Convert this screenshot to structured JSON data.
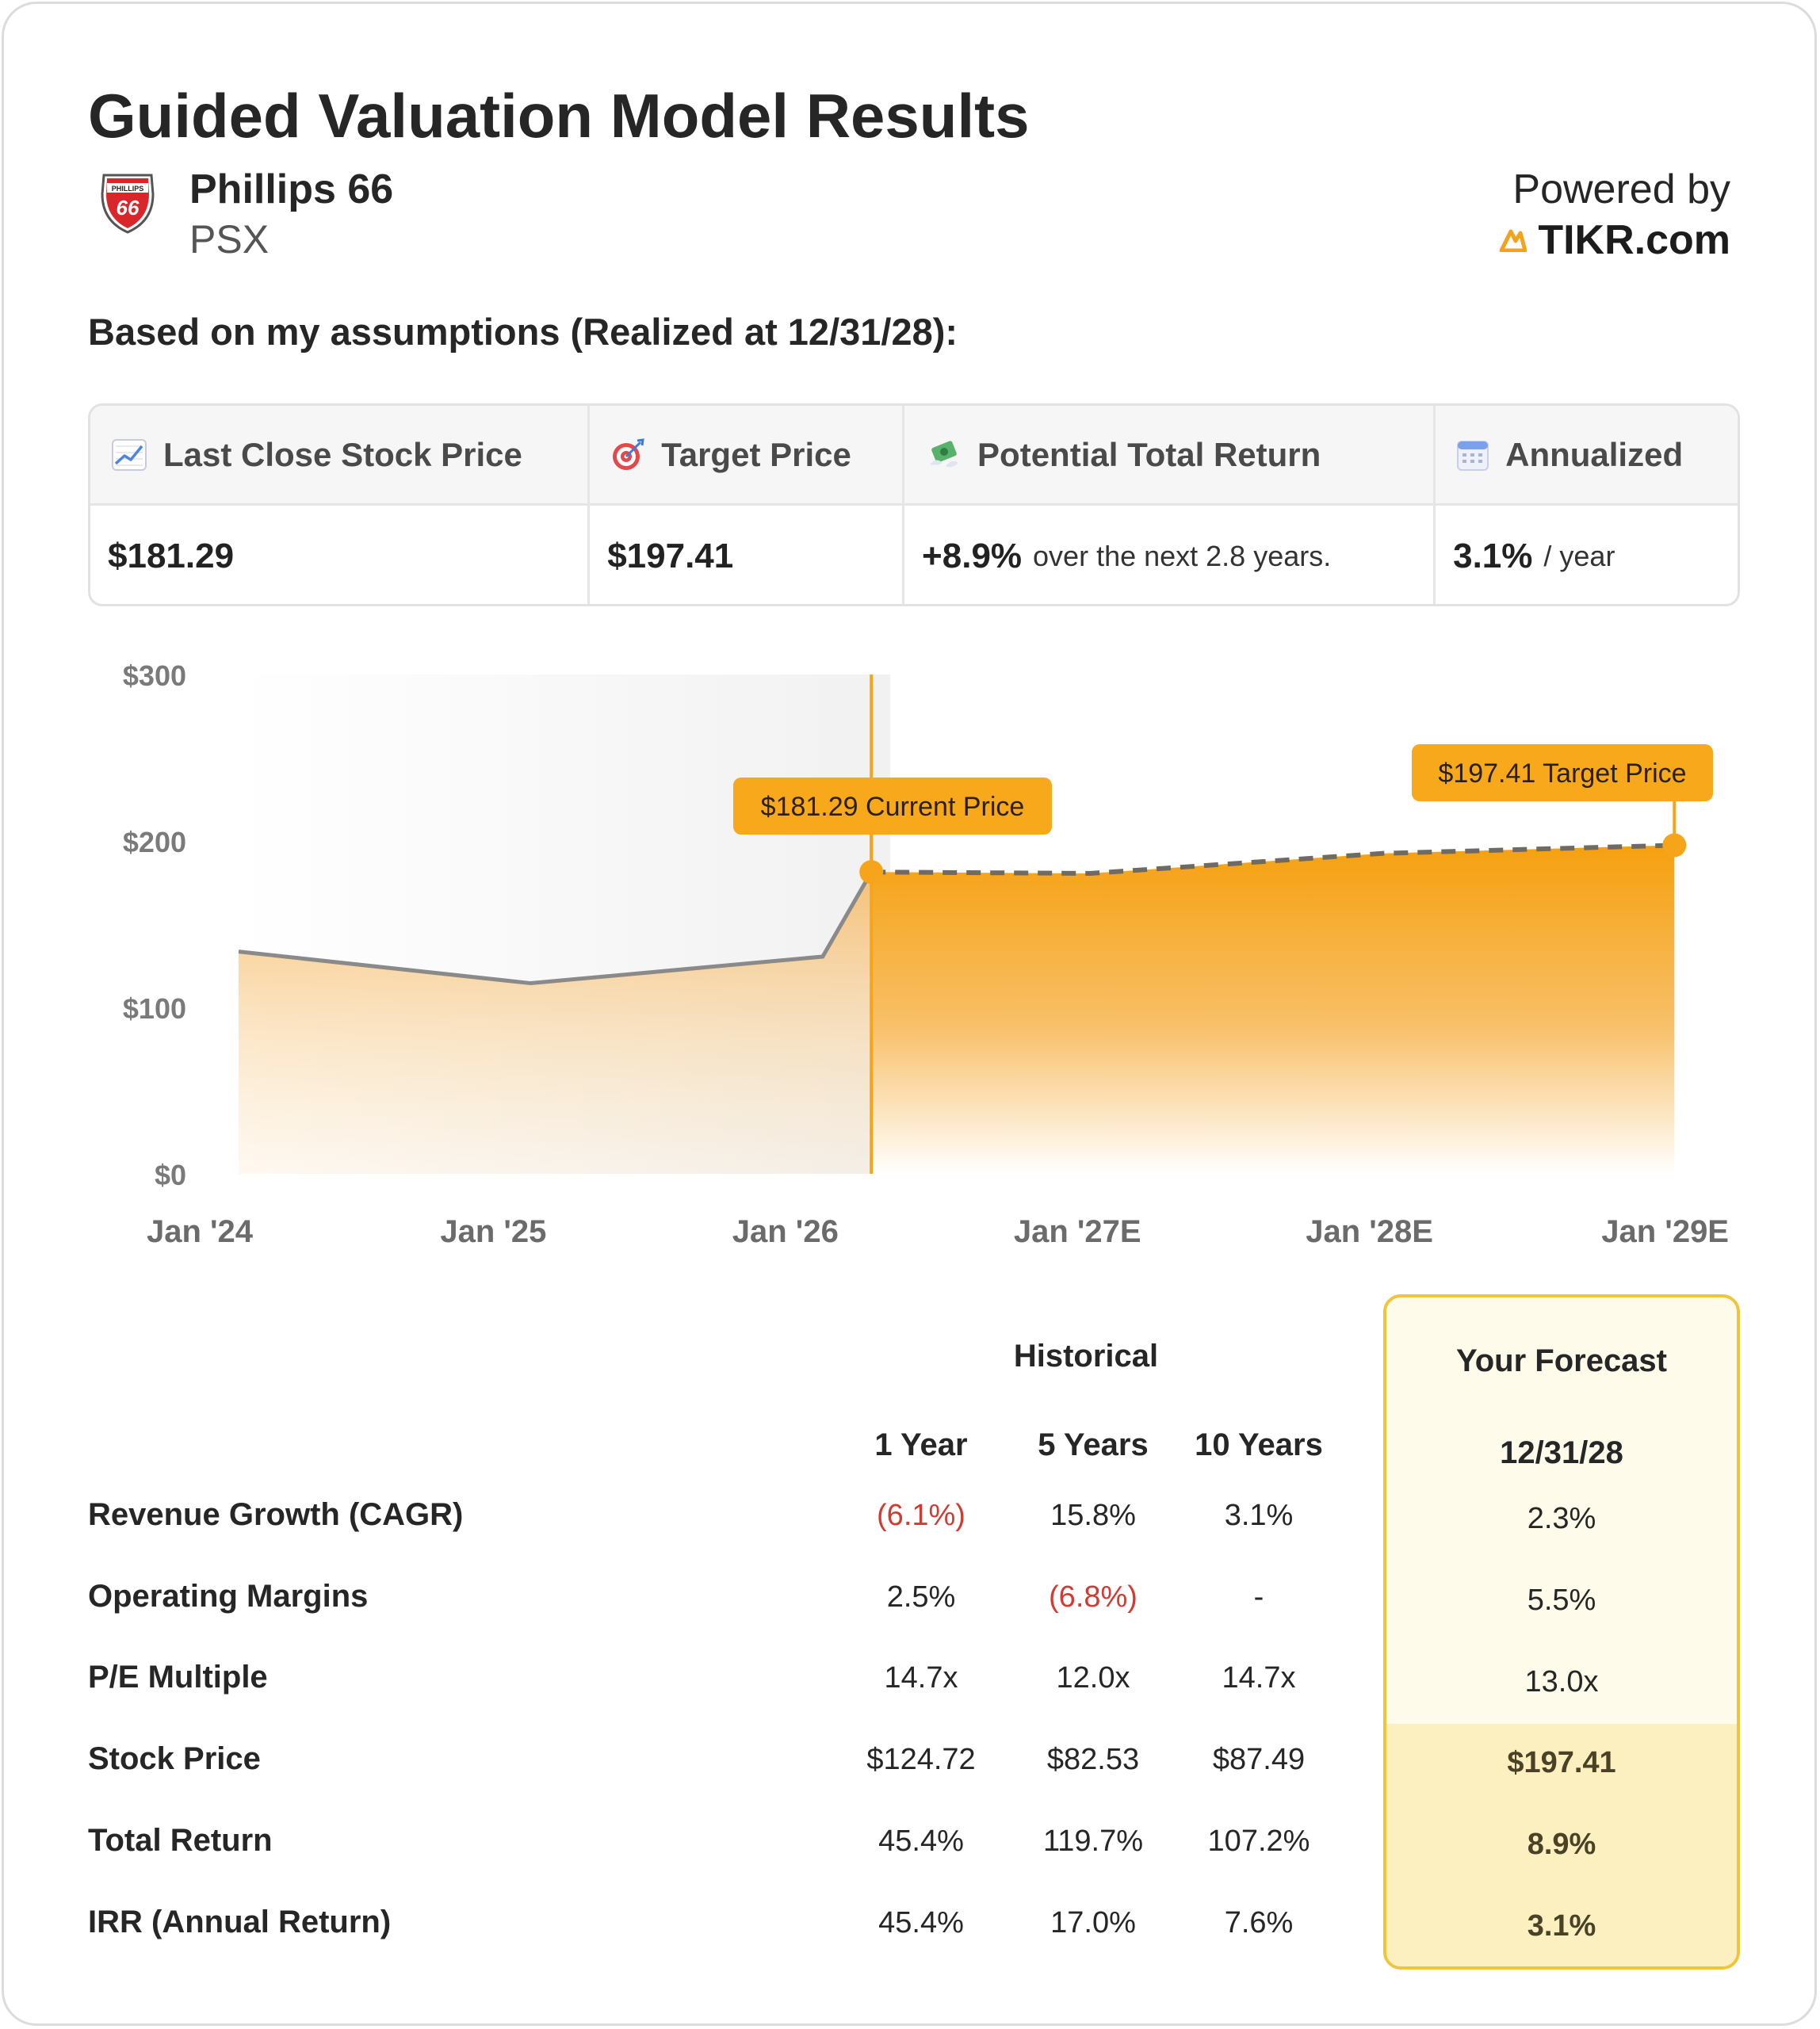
{
  "page": {
    "title": "Guided Valuation Model Results",
    "company": {
      "name": "Phillips 66",
      "ticker": "PSX",
      "logo_text": "PHILLIPS 66"
    },
    "powered_by": {
      "label": "Powered by",
      "brand": "TIKR.com",
      "brand_color": "#f2a21c"
    },
    "assumptions_heading": "Based on my assumptions (Realized at 12/31/28):"
  },
  "summary": {
    "last_close": {
      "label": "Last Close Stock Price",
      "icon": "chart-increasing-icon",
      "value": "$181.29"
    },
    "target": {
      "label": "Target Price",
      "icon": "target-icon",
      "value": "$197.41"
    },
    "total_return": {
      "label": "Potential Total Return",
      "icon": "money-with-wings-icon",
      "value": "+8.9%",
      "suffix": "over the next 2.8 years."
    },
    "annualized": {
      "label": "Annualized",
      "icon": "calendar-icon",
      "value": "3.1%",
      "suffix": "/ year"
    }
  },
  "chart_data": {
    "type": "area",
    "x_ticks": [
      "Jan '24",
      "Jan '25",
      "Jan '26",
      "Jan '27E",
      "Jan '28E",
      "Jan '29E"
    ],
    "y_ticks": [
      "$300",
      "$200",
      "$100",
      "$0"
    ],
    "ylim": [
      0,
      300
    ],
    "series": [
      {
        "name": "Historical",
        "points": [
          [
            "2024-01",
            133.5
          ],
          [
            "2025-01",
            114.5
          ],
          [
            "2026-01",
            130.5
          ],
          [
            "2026-03",
            181.29
          ]
        ]
      },
      {
        "name": "Forecast",
        "points": [
          [
            "2026-03",
            181.29
          ],
          [
            "2026-12",
            180.5
          ],
          [
            "2027-12",
            192.5
          ],
          [
            "2028-12",
            197.41
          ]
        ]
      }
    ],
    "annotations": [
      {
        "text": "$181.29 Current Price",
        "value": 181.29
      },
      {
        "text": "$197.41 Target Price",
        "value": 197.41
      }
    ],
    "colors": {
      "accent": "#f6a51a",
      "historical_line": "#8a8a8a",
      "forecast_line": "#6f6a62"
    }
  },
  "table": {
    "historical_label": "Historical",
    "columns": [
      "1 Year",
      "5 Years",
      "10 Years"
    ],
    "forecast_title": "Your Forecast",
    "forecast_date": "12/31/28",
    "rows": [
      {
        "label": "Revenue Growth (CAGR)",
        "values": [
          "(6.1%)",
          "15.8%",
          "3.1%"
        ],
        "forecast": "2.3%"
      },
      {
        "label": "Operating Margins",
        "values": [
          "2.5%",
          "(6.8%)",
          "-"
        ],
        "forecast": "5.5%"
      },
      {
        "label": "P/E Multiple",
        "values": [
          "14.7x",
          "12.0x",
          "14.7x"
        ],
        "forecast": "13.0x"
      },
      {
        "label": "Stock Price",
        "values": [
          "$124.72",
          "$82.53",
          "$87.49"
        ],
        "forecast": "$197.41"
      },
      {
        "label": "Total Return",
        "values": [
          "45.4%",
          "119.7%",
          "107.2%"
        ],
        "forecast": "8.9%"
      },
      {
        "label": "IRR (Annual Return)",
        "values": [
          "45.4%",
          "17.0%",
          "7.6%"
        ],
        "forecast": "3.1%"
      }
    ],
    "negative_color": "#d23b32"
  }
}
